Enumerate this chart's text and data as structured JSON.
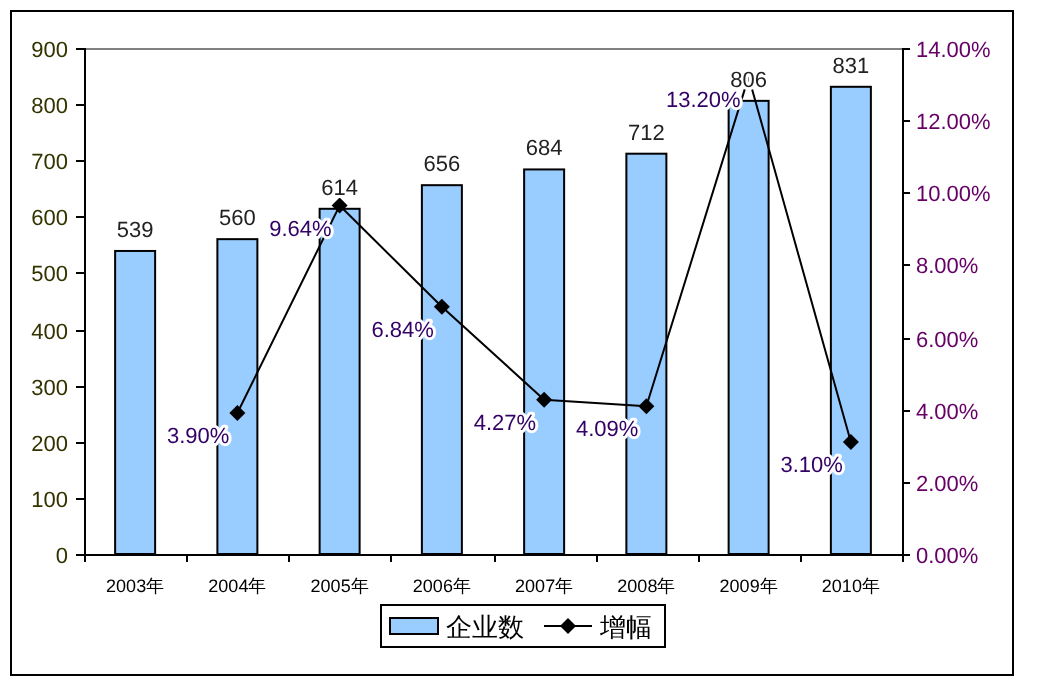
{
  "chart_data": {
    "type": "bar",
    "categories": [
      "2003年",
      "2004年",
      "2005年",
      "2006年",
      "2007年",
      "2008年",
      "2009年",
      "2010年"
    ],
    "series": [
      {
        "name": "企业数",
        "type": "bar",
        "color": "#99ccff",
        "values": [
          539,
          560,
          614,
          656,
          684,
          712,
          806,
          831
        ]
      },
      {
        "name": "增幅",
        "type": "line",
        "axis": "y2",
        "color": "#000000",
        "marker": "diamond",
        "values": [
          null,
          3.9,
          9.64,
          6.84,
          4.27,
          4.09,
          13.2,
          3.1
        ],
        "value_labels": [
          null,
          "3.90%",
          "9.64%",
          "6.84%",
          "4.27%",
          "4.09%",
          "13.20%",
          "3.10%"
        ]
      }
    ],
    "ylim": [
      0,
      900
    ],
    "yticks": [
      0,
      100,
      200,
      300,
      400,
      500,
      600,
      700,
      800,
      900
    ],
    "y2lim": [
      0,
      14
    ],
    "y2ticks": [
      {
        "value": 0,
        "label": "0.00%"
      },
      {
        "value": 2,
        "label": "2.00%"
      },
      {
        "value": 4,
        "label": "4.00%"
      },
      {
        "value": 6,
        "label": "6.00%"
      },
      {
        "value": 8,
        "label": "8.00%"
      },
      {
        "value": 10,
        "label": "10.00%"
      },
      {
        "value": 12,
        "label": "12.00%"
      },
      {
        "value": 14,
        "label": "14.00%"
      }
    ],
    "data_labels": true,
    "legend": "bottom"
  }
}
